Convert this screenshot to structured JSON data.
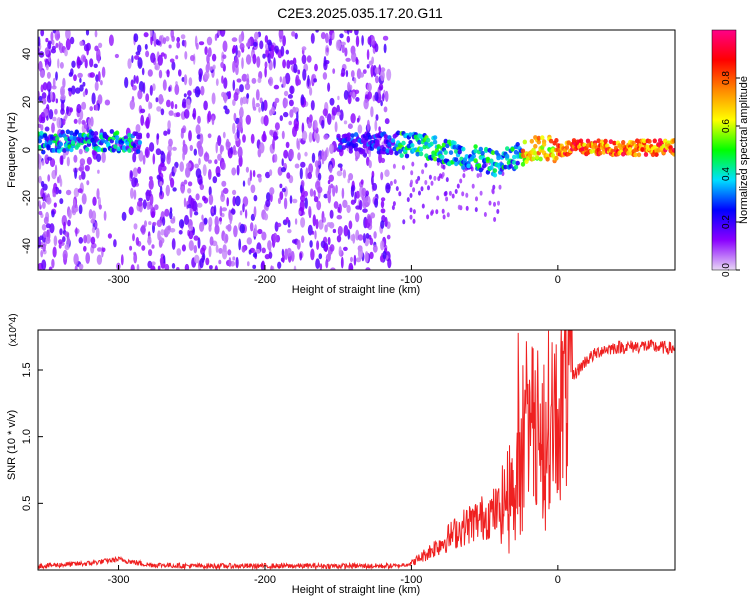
{
  "figure": {
    "title": "C2E3.2025.035.17.20.G11"
  },
  "chart_data": [
    {
      "type": "heatmap",
      "title": "C2E3.2025.035.17.20.G11",
      "xlabel": "Height of straight line (km)",
      "ylabel": "Frequency (Hz)",
      "xlim": [
        -355,
        80
      ],
      "ylim": [
        -50,
        50
      ],
      "xticks": [
        -300,
        -200,
        -100,
        0
      ],
      "yticks": [
        -40,
        -20,
        0,
        20,
        40
      ],
      "grid": false,
      "colorbar": {
        "label": "Normalized spectral amplitude",
        "range": [
          0.0,
          1.0
        ],
        "ticks": [
          "0.0",
          "0.2",
          "0.4",
          "0.6",
          "0.8"
        ],
        "colormap": "rainbow",
        "stops": [
          "#e8d8f4",
          "#8a00ff",
          "#0000ff",
          "#00e0ff",
          "#00ff00",
          "#ffff00",
          "#ff8800",
          "#ff0000",
          "#ff0088"
        ]
      },
      "ridge": {
        "x": [
          -350,
          -330,
          -310,
          -290,
          -140,
          -120,
          -100,
          -80,
          -60,
          -40,
          -30,
          -20,
          -10,
          0,
          10,
          20,
          40,
          60,
          80
        ],
        "y": [
          3,
          4,
          4,
          3,
          3,
          3,
          2,
          0,
          -3,
          -6,
          -3,
          0,
          1,
          0,
          1,
          1,
          1,
          1,
          1
        ]
      }
    },
    {
      "type": "line",
      "xlabel": "Height of straight line (km)",
      "ylabel": "SNR (10 * v/v)",
      "multiplier": "(x10^4)",
      "xlim": [
        -355,
        80
      ],
      "ylim": [
        0,
        1.8
      ],
      "xticks": [
        -300,
        -200,
        -100,
        0
      ],
      "yticks": [
        0.5,
        1.0,
        1.5
      ],
      "ytick_labels": [
        "0.5",
        "1.0",
        "1.5"
      ],
      "grid": false,
      "series": [
        {
          "color": "#ef2020",
          "x": [
            -355,
            -320,
            -300,
            -280,
            -250,
            -200,
            -150,
            -110,
            -100,
            -90,
            -80,
            -70,
            -60,
            -50,
            -40,
            -35,
            -30,
            -25,
            -20,
            -15,
            -10,
            -5,
            0,
            5,
            10,
            20,
            30,
            40,
            60,
            80
          ],
          "y": [
            0.03,
            0.05,
            0.08,
            0.04,
            0.03,
            0.03,
            0.03,
            0.03,
            0.05,
            0.12,
            0.2,
            0.28,
            0.35,
            0.4,
            0.45,
            0.55,
            0.7,
            0.9,
            1.0,
            1.05,
            1.1,
            1.15,
            1.2,
            1.3,
            1.45,
            1.58,
            1.65,
            1.67,
            1.68,
            1.66
          ]
        }
      ]
    }
  ]
}
